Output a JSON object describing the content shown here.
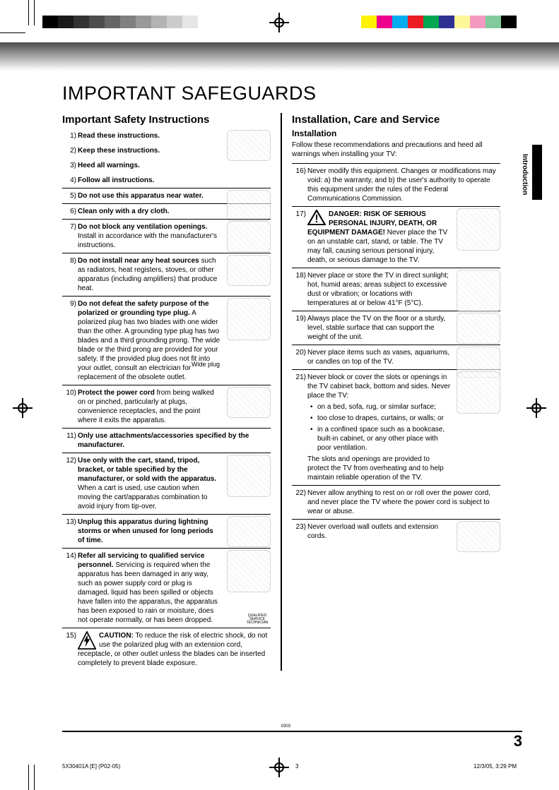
{
  "printer_marks": {
    "gray_swatches": [
      "#000000",
      "#1a1a1a",
      "#333333",
      "#4d4d4d",
      "#666666",
      "#808080",
      "#999999",
      "#b3b3b3",
      "#cccccc",
      "#e5e5e5"
    ],
    "color_swatches": [
      "#fff200",
      "#ec008c",
      "#00aeef",
      "#ed1c24",
      "#00a651",
      "#2e3192",
      "#fff799",
      "#f49ac1",
      "#82ca9c",
      "#000000"
    ]
  },
  "page_title": "IMPORTANT SAFEGUARDS",
  "side_tab_label": "Introduction",
  "left_column": {
    "heading": "Important Safety Instructions",
    "items": [
      {
        "n": "1)",
        "bold": "Read these instructions.",
        "rest": "",
        "illus": true
      },
      {
        "n": "2)",
        "bold": "Keep these instructions.",
        "rest": ""
      },
      {
        "n": "3)",
        "bold": "Heed all warnings.",
        "rest": ""
      },
      {
        "n": "4)",
        "bold": "Follow all instructions.",
        "rest": "",
        "border": true
      },
      {
        "n": "5)",
        "bold": "Do not use this apparatus near water.",
        "rest": "",
        "illus": true,
        "border": true
      },
      {
        "n": "6)",
        "bold": "Clean only with a dry cloth.",
        "rest": "",
        "border": true
      },
      {
        "n": "7)",
        "bold": "Do not block any ventilation openings.",
        "rest": " Install in accordance with the manufacturer's instructions.",
        "illus": true,
        "border": true
      },
      {
        "n": "8)",
        "bold": "Do not install near any heat sources",
        "rest": " such as radiators, heat registers, stoves, or other apparatus (including amplifiers) that produce heat.",
        "illus": true,
        "border": true
      },
      {
        "n": "9)",
        "bold": "Do not defeat the safety purpose of the polarized or grounding type plug.",
        "rest": " A polarized plug has two blades with one wider than the other. A grounding type plug has two blades and a third grounding prong. The wide blade or the third prong are provided for your safety. If the provided plug does not fit into your outlet, consult an electrician for replacement of the obsolete outlet.",
        "plug_label": "Wide plug",
        "illus": true,
        "border": true,
        "tall": true
      },
      {
        "n": "10)",
        "bold": "Protect the power cord",
        "rest": " from being walked on or pinched, particularly at plugs, convenience receptacles, and the point where it exits the apparatus.",
        "illus": true,
        "border": true
      },
      {
        "n": "11)",
        "bold": "Only use attachments/accessories specified by the manufacturer.",
        "rest": "",
        "border": true
      },
      {
        "n": "12)",
        "bold": "Use only with the cart, stand, tripod, bracket, or table specified by the manufacturer, or sold with the apparatus.",
        "rest": " When a cart is used, use caution when moving the cart/apparatus combination to avoid injury from tip-over.",
        "illus": true,
        "border": true,
        "tall": true
      },
      {
        "n": "13)",
        "bold": "Unplug this apparatus during lightning storms or when unused for long periods of time.",
        "rest": "",
        "illus": true,
        "border": true
      },
      {
        "n": "14)",
        "bold": "Refer all servicing to qualified service personnel.",
        "rest": " Servicing is required when the apparatus has been damaged in any way, such as power supply cord or plug is damaged, liquid has been spilled or objects have fallen into the apparatus, the apparatus has been exposed to rain or moisture, does not operate normally, or has been dropped.",
        "illus": true,
        "tall": true,
        "border": true,
        "tiny": "QUALIFIED SERVICE TECHNICIAN"
      },
      {
        "n": "15)",
        "caution_lead": "CAUTION:",
        "rest": " To reduce the risk of electric shock, do not use the polarized plug with an extension cord,  receptacle, or other outlet unless the blades can be inserted completely to prevent blade exposure.",
        "bolt": true
      }
    ]
  },
  "right_column": {
    "heading": "Installation, Care and Service",
    "subheading": "Installation",
    "intro": "Follow these recommendations and precautions and heed all warnings when installing your TV:",
    "items": [
      {
        "n": "16)",
        "rest": "Never modify this equipment. Changes or modifications may void: a) the warranty, and b) the user's authority to operate this equipment under the rules of the Federal Communications Commission.",
        "border": true
      },
      {
        "n": "17)",
        "danger_bold": "DANGER: RISK OF SERIOUS PERSONAL INJURY, DEATH, OR EQUIPMENT DAMAGE!",
        "rest": " Never place the TV on an unstable cart, stand, or table. The TV may fall, causing serious personal injury, death, or serious damage to the TV.",
        "illus": true,
        "warn": true,
        "border": true,
        "tall": true
      },
      {
        "n": "18)",
        "rest": "Never place or store the TV in direct sunlight; hot, humid areas; areas subject to excessive dust or vibration; or locations with temperatures at or below 41°F (5°C).",
        "illus": true,
        "border": true,
        "tall": true
      },
      {
        "n": "19)",
        "rest": "Always place the TV on the floor or a sturdy, level, stable surface that can support the weight of the unit.",
        "illus": true,
        "border": true
      },
      {
        "n": "20)",
        "rest": "Never place items such as vases, aquariums, or candles on top of the TV.",
        "illus": true,
        "border": true
      },
      {
        "n": "21)",
        "rest_lead": "Never block or cover the slots or openings in the TV cabinet back, bottom and sides. Never place the TV:",
        "bullets": [
          "on a bed, sofa, rug, or similar surface;",
          "too close to drapes, curtains, or walls; or",
          "in a confined space such as a bookcase, built-in cabinet, or any other place with poor ventilation."
        ],
        "rest_trail": "The slots and openings are provided to protect the TV from overheating and to help maintain reliable operation of the TV.",
        "illus": true,
        "border": true,
        "tall": true
      },
      {
        "n": "22)",
        "rest": "Never allow anything to rest on or roll over the power cord, and never place the TV where the power cord is subject to wear or abuse.",
        "border": true
      },
      {
        "n": "23)",
        "rest": "Never overload wall outlets and extension cords.",
        "illus": true
      }
    ]
  },
  "page_number": "3",
  "footer": {
    "doc_code": "5X30401A [E] (P02-05)",
    "mid": "3",
    "datetime": "12/3/05, 3:29 PM",
    "small_code": "0303"
  }
}
